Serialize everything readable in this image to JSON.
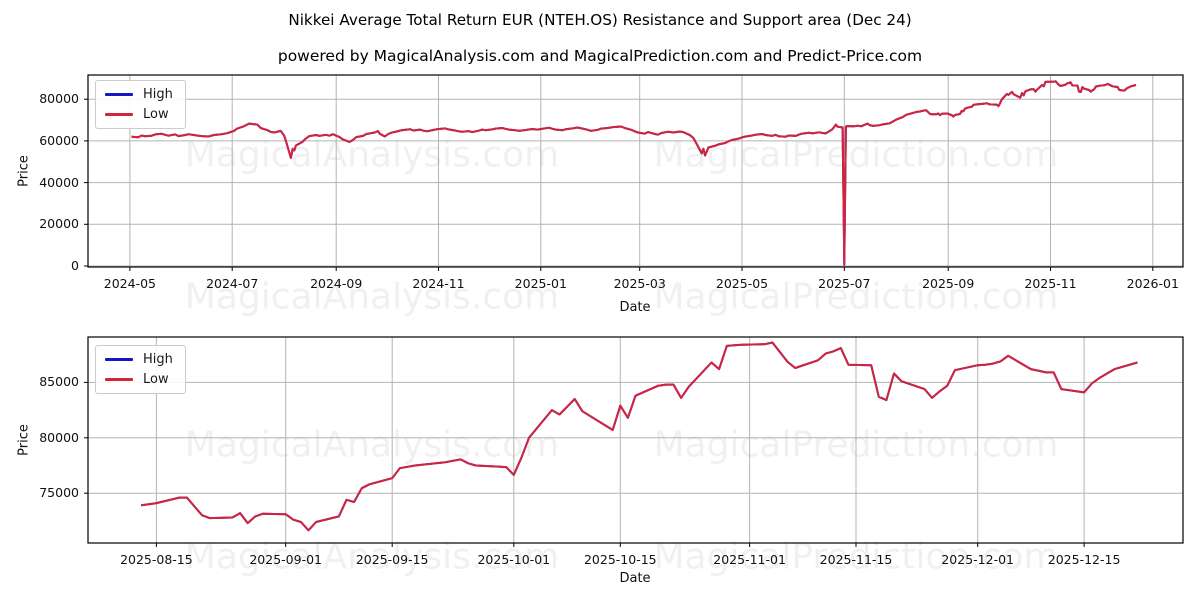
{
  "figure": {
    "title": "Nikkei Average Total Return EUR (NTEH.OS) Resistance and Support area (Dec 24)",
    "subtitle": "powered by MagicalAnalysis.com and MagicalPrediction.com and Predict-Price.com"
  },
  "watermarks": {
    "texts": [
      "MagicalAnalysis.com",
      "MagicalPrediction.com"
    ]
  },
  "colors": {
    "high_line": "#1515c3",
    "low_line": "#d2243b",
    "grid": "#b4b4b4",
    "spine": "#000000",
    "watermark": "rgba(0,0,0,0.06)"
  },
  "chart_data": [
    {
      "type": "line",
      "ylabel": "Price",
      "xlabel": "Date",
      "grid": true,
      "legend_loc": "upper left",
      "xlim": [
        "2024-04-06",
        "2026-01-19"
      ],
      "ylim": [
        -500,
        91600
      ],
      "yticks": [
        {
          "v": 0,
          "label": "0"
        },
        {
          "v": 20000,
          "label": "20000"
        },
        {
          "v": 40000,
          "label": "40000"
        },
        {
          "v": 60000,
          "label": "60000"
        },
        {
          "v": 80000,
          "label": "80000"
        }
      ],
      "xticks": [
        {
          "d": "2024-05-01",
          "label": "2024-05"
        },
        {
          "d": "2024-07-01",
          "label": "2024-07"
        },
        {
          "d": "2024-09-01",
          "label": "2024-09"
        },
        {
          "d": "2024-11-01",
          "label": "2024-11"
        },
        {
          "d": "2025-01-01",
          "label": "2025-01"
        },
        {
          "d": "2025-03-01",
          "label": "2025-03"
        },
        {
          "d": "2025-05-01",
          "label": "2025-05"
        },
        {
          "d": "2025-07-01",
          "label": "2025-07"
        },
        {
          "d": "2025-09-01",
          "label": "2025-09"
        },
        {
          "d": "2025-11-01",
          "label": "2025-11"
        },
        {
          "d": "2026-01-01",
          "label": "2026-01"
        }
      ],
      "series": [
        {
          "name": "High",
          "color": "#1515c3",
          "note": "visually identical to Low, hidden beneath it"
        },
        {
          "name": "Low",
          "color": "#d2243b"
        }
      ],
      "dates": [
        "2024-05-02",
        "2024-05-06",
        "2024-05-08",
        "2024-05-10",
        "2024-05-14",
        "2024-05-16",
        "2024-05-20",
        "2024-05-22",
        "2024-05-24",
        "2024-05-28",
        "2024-05-30",
        "2024-06-03",
        "2024-06-05",
        "2024-06-07",
        "2024-06-11",
        "2024-06-13",
        "2024-06-17",
        "2024-06-20",
        "2024-06-24",
        "2024-06-26",
        "2024-06-28",
        "2024-07-02",
        "2024-07-04",
        "2024-07-08",
        "2024-07-11",
        "2024-07-16",
        "2024-07-18",
        "2024-07-22",
        "2024-07-24",
        "2024-07-26",
        "2024-07-30",
        "2024-08-01",
        "2024-08-02",
        "2024-08-05",
        "2024-08-06",
        "2024-08-07",
        "2024-08-08",
        "2024-08-12",
        "2024-08-14",
        "2024-08-16",
        "2024-08-20",
        "2024-08-22",
        "2024-08-26",
        "2024-08-28",
        "2024-08-30",
        "2024-09-03",
        "2024-09-05",
        "2024-09-09",
        "2024-09-11",
        "2024-09-13",
        "2024-09-17",
        "2024-09-19",
        "2024-09-24",
        "2024-09-26",
        "2024-09-27",
        "2024-09-30",
        "2024-10-02",
        "2024-10-04",
        "2024-10-08",
        "2024-10-10",
        "2024-10-15",
        "2024-10-17",
        "2024-10-21",
        "2024-10-23",
        "2024-10-25",
        "2024-10-29",
        "2024-10-31",
        "2024-11-05",
        "2024-11-07",
        "2024-11-11",
        "2024-11-13",
        "2024-11-15",
        "2024-11-19",
        "2024-11-21",
        "2024-11-25",
        "2024-11-27",
        "2024-11-29",
        "2024-12-03",
        "2024-12-05",
        "2024-12-09",
        "2024-12-11",
        "2024-12-13",
        "2024-12-17",
        "2024-12-19",
        "2024-12-23",
        "2024-12-27",
        "2024-12-30",
        "2025-01-06",
        "2025-01-08",
        "2025-01-10",
        "2025-01-14",
        "2025-01-16",
        "2025-01-20",
        "2025-01-23",
        "2025-01-27",
        "2025-01-29",
        "2025-01-31",
        "2025-02-04",
        "2025-02-06",
        "2025-02-10",
        "2025-02-13",
        "2025-02-18",
        "2025-02-20",
        "2025-02-24",
        "2025-02-26",
        "2025-02-28",
        "2025-03-04",
        "2025-03-06",
        "2025-03-10",
        "2025-03-12",
        "2025-03-14",
        "2025-03-18",
        "2025-03-21",
        "2025-03-25",
        "2025-03-27",
        "2025-03-31",
        "2025-04-02",
        "2025-04-04",
        "2025-04-07",
        "2025-04-08",
        "2025-04-09",
        "2025-04-11",
        "2025-04-15",
        "2025-04-17",
        "2025-04-21",
        "2025-04-23",
        "2025-04-25",
        "2025-04-29",
        "2025-05-02",
        "2025-05-07",
        "2025-05-09",
        "2025-05-13",
        "2025-05-15",
        "2025-05-19",
        "2025-05-21",
        "2025-05-23",
        "2025-05-27",
        "2025-05-29",
        "2025-06-02",
        "2025-06-04",
        "2025-06-06",
        "2025-06-10",
        "2025-06-12",
        "2025-06-16",
        "2025-06-18",
        "2025-06-20",
        "2025-06-24",
        "2025-06-26",
        "2025-06-27",
        "2025-06-30",
        "2025-07-01",
        "2025-07-02",
        "2025-07-03",
        "2025-07-07",
        "2025-07-09",
        "2025-07-11",
        "2025-07-15",
        "2025-07-16",
        "2025-07-18",
        "2025-07-22",
        "2025-07-24",
        "2025-07-28",
        "2025-07-30",
        "2025-08-01",
        "2025-08-05",
        "2025-08-07",
        "2025-08-11",
        "2025-08-13",
        "2025-08-14",
        "2025-08-15",
        "2025-08-18",
        "2025-08-19",
        "2025-08-20",
        "2025-08-21",
        "2025-08-22",
        "2025-08-25",
        "2025-08-26",
        "2025-08-27",
        "2025-08-28",
        "2025-08-29",
        "2025-09-01",
        "2025-09-02",
        "2025-09-03",
        "2025-09-04",
        "2025-09-05",
        "2025-09-08",
        "2025-09-09",
        "2025-09-10",
        "2025-09-11",
        "2025-09-12",
        "2025-09-15",
        "2025-09-16",
        "2025-09-18",
        "2025-09-22",
        "2025-09-24",
        "2025-09-25",
        "2025-09-26",
        "2025-09-29",
        "2025-09-30",
        "2025-10-01",
        "2025-10-02",
        "2025-10-03",
        "2025-10-06",
        "2025-10-07",
        "2025-10-08",
        "2025-10-09",
        "2025-10-10",
        "2025-10-14",
        "2025-10-15",
        "2025-10-16",
        "2025-10-17",
        "2025-10-20",
        "2025-10-21",
        "2025-10-22",
        "2025-10-23",
        "2025-10-24",
        "2025-10-27",
        "2025-10-28",
        "2025-10-29",
        "2025-10-30",
        "2025-10-31",
        "2025-11-03",
        "2025-11-04",
        "2025-11-06",
        "2025-11-07",
        "2025-11-10",
        "2025-11-11",
        "2025-11-12",
        "2025-11-13",
        "2025-11-14",
        "2025-11-17",
        "2025-11-18",
        "2025-11-19",
        "2025-11-20",
        "2025-11-21",
        "2025-11-24",
        "2025-11-25",
        "2025-11-26",
        "2025-11-27",
        "2025-11-28",
        "2025-12-01",
        "2025-12-02",
        "2025-12-03",
        "2025-12-04",
        "2025-12-05",
        "2025-12-08",
        "2025-12-10",
        "2025-12-11",
        "2025-12-12",
        "2025-12-15",
        "2025-12-16",
        "2025-12-17",
        "2025-12-18",
        "2025-12-19",
        "2025-12-22"
      ],
      "low": [
        62000,
        61700,
        62600,
        62200,
        62500,
        63100,
        63400,
        62900,
        62500,
        63100,
        62300,
        62800,
        63200,
        62900,
        62500,
        62300,
        62100,
        62800,
        63100,
        63400,
        63700,
        64800,
        65900,
        67000,
        68300,
        67800,
        66200,
        65100,
        64300,
        64000,
        64800,
        62500,
        60000,
        51800,
        56200,
        55400,
        57800,
        59600,
        61200,
        62300,
        62800,
        62400,
        62900,
        62500,
        63200,
        61800,
        60700,
        59500,
        60400,
        61800,
        62400,
        63300,
        64000,
        64700,
        63400,
        62100,
        63300,
        63900,
        64700,
        65100,
        65600,
        65000,
        65400,
        64900,
        64600,
        65200,
        65600,
        66000,
        65500,
        65000,
        64600,
        64400,
        64700,
        64200,
        64900,
        65400,
        65100,
        65500,
        65900,
        66200,
        65800,
        65400,
        65100,
        64800,
        65200,
        65700,
        65400,
        66300,
        65800,
        65400,
        65100,
        65600,
        66000,
        66400,
        65700,
        65300,
        64800,
        65300,
        65900,
        66200,
        66600,
        66900,
        66200,
        65300,
        64600,
        64000,
        63500,
        64200,
        63300,
        63000,
        63800,
        64400,
        64000,
        64500,
        64200,
        62700,
        61400,
        58500,
        54000,
        56200,
        53000,
        56800,
        57700,
        58300,
        59000,
        59800,
        60400,
        61100,
        61900,
        62600,
        62900,
        63300,
        62800,
        62400,
        62900,
        62200,
        62000,
        62600,
        62400,
        63000,
        63500,
        63900,
        63600,
        64100,
        63800,
        63600,
        65600,
        67800,
        66800,
        66400,
        600,
        66900,
        67100,
        67000,
        67300,
        67000,
        68300,
        67600,
        67200,
        67500,
        67900,
        68400,
        69300,
        70200,
        71500,
        72500,
        73400,
        73900,
        74000,
        74100,
        74600,
        74600,
        73800,
        73000,
        72750,
        72800,
        73200,
        72300,
        72900,
        73150,
        73100,
        72600,
        72400,
        71650,
        72400,
        72900,
        74400,
        74200,
        75450,
        75800,
        76350,
        77250,
        77500,
        77800,
        78050,
        77700,
        77500,
        77400,
        77350,
        76650,
        78200,
        80000,
        82500,
        82100,
        82800,
        83500,
        82400,
        80700,
        82900,
        81800,
        83800,
        84700,
        84800,
        84800,
        83600,
        84600,
        86800,
        86200,
        88300,
        88350,
        88400,
        88450,
        88600,
        86850,
        86300,
        87000,
        87600,
        87800,
        88100,
        86600,
        86550,
        83700,
        83400,
        85800,
        85100,
        84400,
        83600,
        84200,
        84700,
        86100,
        86550,
        86600,
        86700,
        86900,
        87400,
        86200,
        85900,
        85900,
        84400,
        84100,
        84900,
        85400,
        85800,
        86200,
        86800
      ],
      "high_same_as_low": true
    },
    {
      "type": "line",
      "ylabel": "Price",
      "xlabel": "Date",
      "grid": true,
      "legend_loc": "upper left",
      "zoom_of_chart": 0,
      "data_from": "2025-08-13",
      "xlim": [
        "2025-08-06",
        "2025-12-28"
      ],
      "ylim": [
        70500,
        89100
      ],
      "yticks": [
        {
          "v": 75000,
          "label": "75000"
        },
        {
          "v": 80000,
          "label": "80000"
        },
        {
          "v": 85000,
          "label": "85000"
        }
      ],
      "xticks": [
        {
          "d": "2025-08-15",
          "label": "2025-08-15"
        },
        {
          "d": "2025-09-01",
          "label": "2025-09-01"
        },
        {
          "d": "2025-09-15",
          "label": "2025-09-15"
        },
        {
          "d": "2025-10-01",
          "label": "2025-10-01"
        },
        {
          "d": "2025-10-15",
          "label": "2025-10-15"
        },
        {
          "d": "2025-11-01",
          "label": "2025-11-01"
        },
        {
          "d": "2025-11-15",
          "label": "2025-11-15"
        },
        {
          "d": "2025-12-01",
          "label": "2025-12-01"
        },
        {
          "d": "2025-12-15",
          "label": "2025-12-15"
        }
      ],
      "series": [
        {
          "name": "High",
          "color": "#1515c3",
          "note": "visually identical to Low, hidden beneath it"
        },
        {
          "name": "Low",
          "color": "#d2243b"
        }
      ]
    }
  ],
  "legend": {
    "high_label": "High",
    "low_label": "Low"
  }
}
